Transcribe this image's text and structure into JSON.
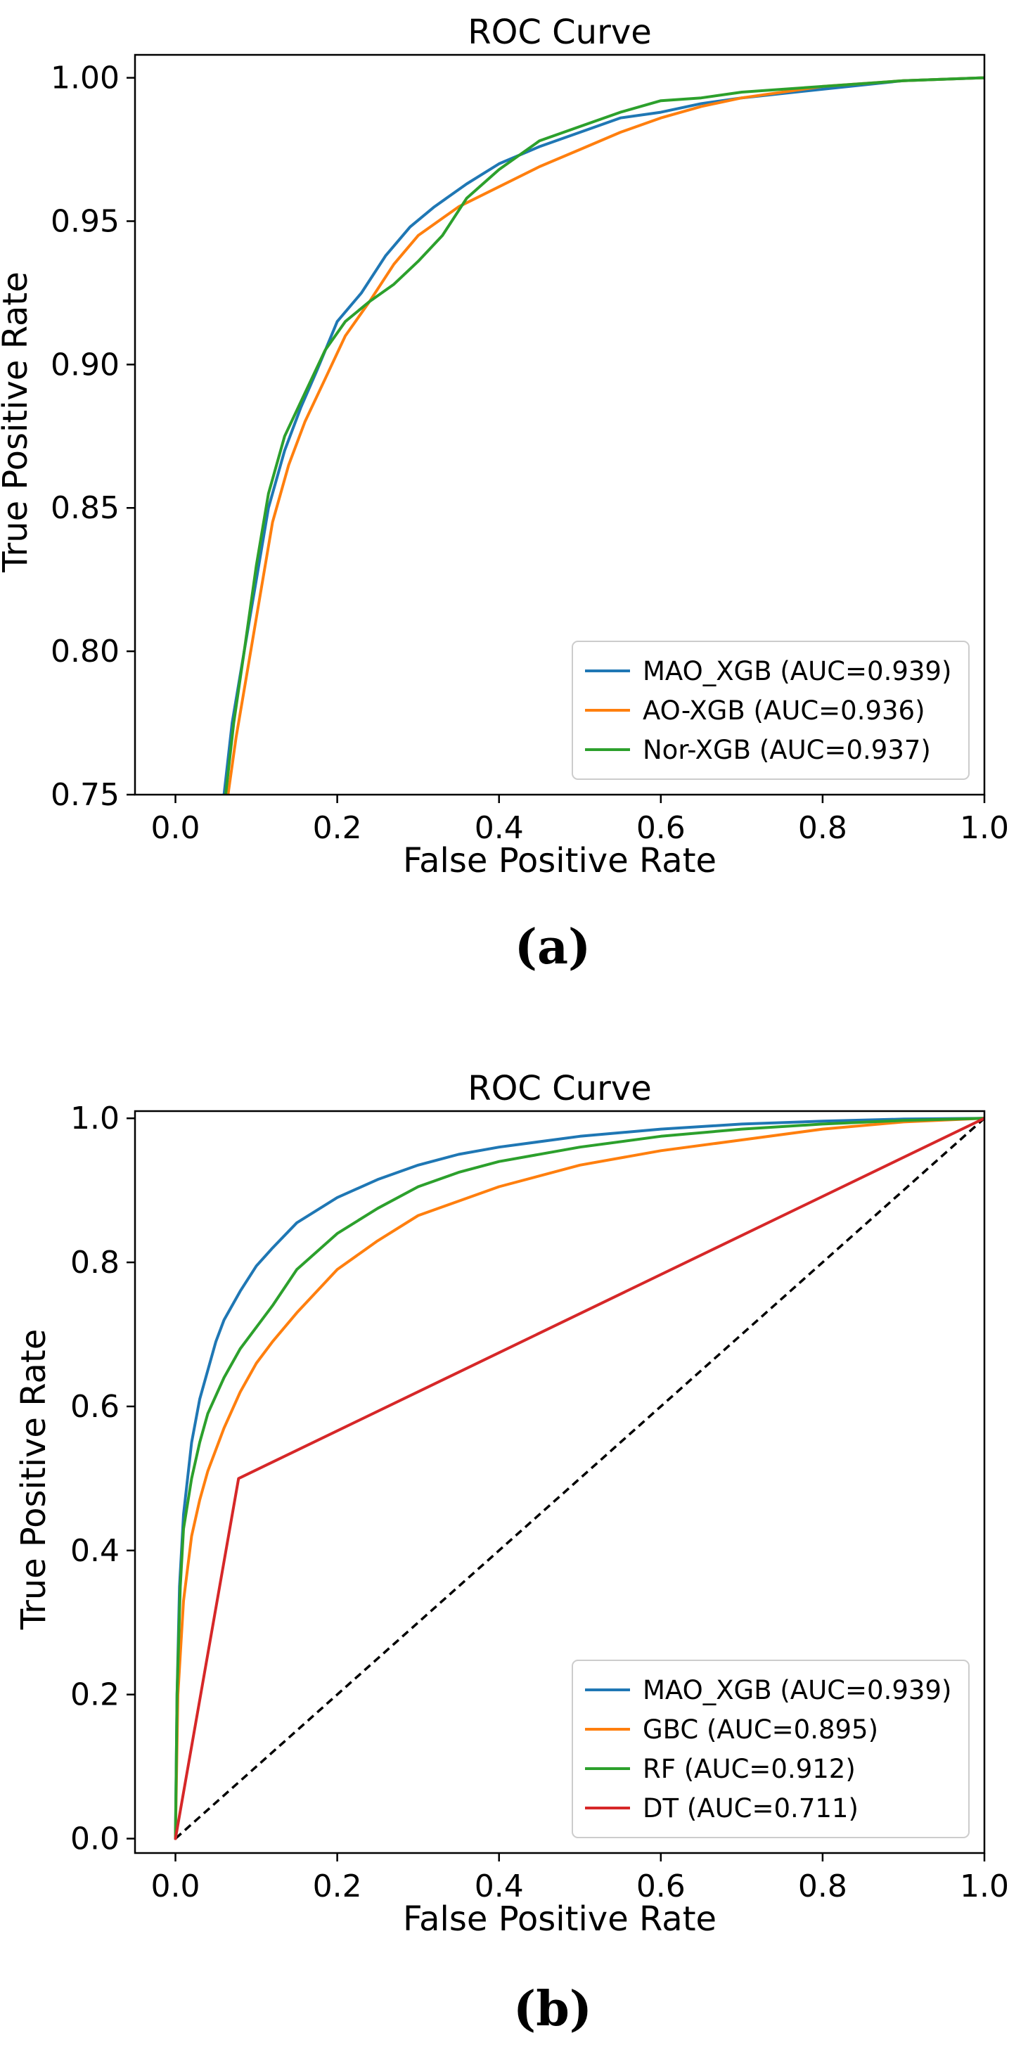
{
  "chart_data": [
    {
      "type": "line",
      "panel_label": "(a)",
      "title": "ROC Curve",
      "xlabel": "False Positive Rate",
      "ylabel": "True Positive Rate",
      "xlim": [
        -0.05,
        1.0
      ],
      "ylim": [
        0.75,
        1.008
      ],
      "xticks": [
        "0.0",
        "0.2",
        "0.4",
        "0.6",
        "0.8",
        "1.0"
      ],
      "yticks": [
        "0.75",
        "0.80",
        "0.85",
        "0.90",
        "0.95",
        "1.00"
      ],
      "legend_position": "lower-right",
      "series": [
        {
          "name": "MAO_XGB (AUC=0.939)",
          "color": "#1f77b4",
          "points": [
            [
              0.06,
              0.75
            ],
            [
              0.07,
              0.775
            ],
            [
              0.085,
              0.8
            ],
            [
              0.1,
              0.825
            ],
            [
              0.115,
              0.85
            ],
            [
              0.135,
              0.87
            ],
            [
              0.155,
              0.885
            ],
            [
              0.175,
              0.898
            ],
            [
              0.2,
              0.915
            ],
            [
              0.23,
              0.925
            ],
            [
              0.26,
              0.938
            ],
            [
              0.29,
              0.948
            ],
            [
              0.32,
              0.955
            ],
            [
              0.36,
              0.963
            ],
            [
              0.4,
              0.97
            ],
            [
              0.45,
              0.976
            ],
            [
              0.5,
              0.981
            ],
            [
              0.55,
              0.986
            ],
            [
              0.6,
              0.988
            ],
            [
              0.65,
              0.991
            ],
            [
              0.7,
              0.993
            ],
            [
              0.8,
              0.996
            ],
            [
              0.9,
              0.999
            ],
            [
              1.0,
              1.0
            ]
          ]
        },
        {
          "name": "AO-XGB (AUC=0.936)",
          "color": "#ff7f0e",
          "points": [
            [
              0.065,
              0.75
            ],
            [
              0.075,
              0.77
            ],
            [
              0.09,
              0.795
            ],
            [
              0.105,
              0.82
            ],
            [
              0.12,
              0.845
            ],
            [
              0.14,
              0.865
            ],
            [
              0.16,
              0.88
            ],
            [
              0.185,
              0.895
            ],
            [
              0.21,
              0.91
            ],
            [
              0.24,
              0.922
            ],
            [
              0.27,
              0.935
            ],
            [
              0.3,
              0.945
            ],
            [
              0.35,
              0.955
            ],
            [
              0.4,
              0.962
            ],
            [
              0.45,
              0.969
            ],
            [
              0.5,
              0.975
            ],
            [
              0.55,
              0.981
            ],
            [
              0.6,
              0.986
            ],
            [
              0.65,
              0.99
            ],
            [
              0.7,
              0.993
            ],
            [
              0.8,
              0.997
            ],
            [
              0.9,
              0.999
            ],
            [
              1.0,
              1.0
            ]
          ]
        },
        {
          "name": "Nor-XGB (AUC=0.937)",
          "color": "#2ca02c",
          "points": [
            [
              0.062,
              0.75
            ],
            [
              0.072,
              0.775
            ],
            [
              0.085,
              0.8
            ],
            [
              0.1,
              0.83
            ],
            [
              0.115,
              0.855
            ],
            [
              0.135,
              0.875
            ],
            [
              0.16,
              0.89
            ],
            [
              0.185,
              0.905
            ],
            [
              0.21,
              0.915
            ],
            [
              0.24,
              0.922
            ],
            [
              0.27,
              0.928
            ],
            [
              0.3,
              0.936
            ],
            [
              0.33,
              0.945
            ],
            [
              0.36,
              0.958
            ],
            [
              0.4,
              0.968
            ],
            [
              0.45,
              0.978
            ],
            [
              0.5,
              0.983
            ],
            [
              0.55,
              0.988
            ],
            [
              0.6,
              0.992
            ],
            [
              0.65,
              0.993
            ],
            [
              0.7,
              0.995
            ],
            [
              0.8,
              0.997
            ],
            [
              0.9,
              0.999
            ],
            [
              1.0,
              1.0
            ]
          ]
        }
      ]
    },
    {
      "type": "line",
      "panel_label": "(b)",
      "title": "ROC Curve",
      "xlabel": "False Positive Rate",
      "ylabel": "True Positive Rate",
      "xlim": [
        -0.05,
        1.0
      ],
      "ylim": [
        -0.02,
        1.01
      ],
      "xticks": [
        "0.0",
        "0.2",
        "0.4",
        "0.6",
        "0.8",
        "1.0"
      ],
      "yticks": [
        "0.0",
        "0.2",
        "0.4",
        "0.6",
        "0.8",
        "1.0"
      ],
      "legend_position": "lower-right",
      "diagonal": {
        "name": "chance",
        "color": "#000000",
        "points": [
          [
            0,
            0
          ],
          [
            1,
            1
          ]
        ]
      },
      "series": [
        {
          "name": "MAO_XGB (AUC=0.939)",
          "color": "#1f77b4",
          "points": [
            [
              0,
              0
            ],
            [
              0.002,
              0.2
            ],
            [
              0.005,
              0.35
            ],
            [
              0.01,
              0.45
            ],
            [
              0.02,
              0.55
            ],
            [
              0.03,
              0.61
            ],
            [
              0.04,
              0.65
            ],
            [
              0.05,
              0.69
            ],
            [
              0.06,
              0.72
            ],
            [
              0.08,
              0.76
            ],
            [
              0.1,
              0.795
            ],
            [
              0.12,
              0.82
            ],
            [
              0.15,
              0.855
            ],
            [
              0.2,
              0.89
            ],
            [
              0.25,
              0.915
            ],
            [
              0.3,
              0.935
            ],
            [
              0.35,
              0.95
            ],
            [
              0.4,
              0.96
            ],
            [
              0.5,
              0.975
            ],
            [
              0.6,
              0.985
            ],
            [
              0.7,
              0.992
            ],
            [
              0.8,
              0.996
            ],
            [
              0.9,
              0.999
            ],
            [
              1.0,
              1.0
            ]
          ]
        },
        {
          "name": "GBC (AUC=0.895)",
          "color": "#ff7f0e",
          "points": [
            [
              0,
              0
            ],
            [
              0.003,
              0.2
            ],
            [
              0.01,
              0.33
            ],
            [
              0.02,
              0.42
            ],
            [
              0.03,
              0.47
            ],
            [
              0.04,
              0.51
            ],
            [
              0.06,
              0.57
            ],
            [
              0.08,
              0.62
            ],
            [
              0.1,
              0.66
            ],
            [
              0.12,
              0.69
            ],
            [
              0.15,
              0.73
            ],
            [
              0.2,
              0.79
            ],
            [
              0.25,
              0.83
            ],
            [
              0.3,
              0.865
            ],
            [
              0.35,
              0.885
            ],
            [
              0.4,
              0.905
            ],
            [
              0.5,
              0.935
            ],
            [
              0.6,
              0.955
            ],
            [
              0.7,
              0.97
            ],
            [
              0.8,
              0.985
            ],
            [
              0.9,
              0.995
            ],
            [
              1.0,
              1.0
            ]
          ]
        },
        {
          "name": "RF (AUC=0.912)",
          "color": "#2ca02c",
          "points": [
            [
              0,
              0
            ],
            [
              0.002,
              0.2
            ],
            [
              0.006,
              0.35
            ],
            [
              0.01,
              0.43
            ],
            [
              0.02,
              0.5
            ],
            [
              0.03,
              0.55
            ],
            [
              0.04,
              0.59
            ],
            [
              0.06,
              0.64
            ],
            [
              0.08,
              0.68
            ],
            [
              0.1,
              0.71
            ],
            [
              0.12,
              0.74
            ],
            [
              0.15,
              0.79
            ],
            [
              0.2,
              0.84
            ],
            [
              0.25,
              0.875
            ],
            [
              0.3,
              0.905
            ],
            [
              0.35,
              0.925
            ],
            [
              0.4,
              0.94
            ],
            [
              0.5,
              0.96
            ],
            [
              0.6,
              0.975
            ],
            [
              0.7,
              0.985
            ],
            [
              0.8,
              0.992
            ],
            [
              0.9,
              0.997
            ],
            [
              1.0,
              1.0
            ]
          ]
        },
        {
          "name": "DT (AUC=0.711)",
          "color": "#d62728",
          "points": [
            [
              0,
              0
            ],
            [
              0.078,
              0.5
            ],
            [
              1.0,
              1.0
            ]
          ]
        }
      ]
    }
  ]
}
